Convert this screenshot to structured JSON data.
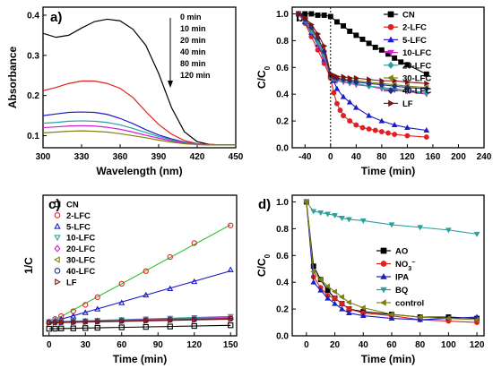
{
  "chart_data": [
    {
      "panel": "a)",
      "type": "line",
      "xlabel": "Wavelength (nm)",
      "ylabel": "Absorbance",
      "xlim": [
        300,
        450
      ],
      "ylim": [
        0.07,
        0.42
      ],
      "xticks": [
        300,
        330,
        360,
        390,
        420,
        450
      ],
      "yticks": [
        0.1,
        0.2,
        0.3,
        0.4
      ],
      "annotations": [
        "0 min",
        "10 min",
        "20 min",
        "40 min",
        "80 min",
        "120 min"
      ],
      "colors": [
        "#000000",
        "#e02020",
        "#1c1cc8",
        "#2aa0a0",
        "#d020d0",
        "#808010"
      ],
      "x": [
        300,
        310,
        320,
        330,
        340,
        350,
        360,
        370,
        380,
        390,
        400,
        410,
        420,
        430,
        440,
        450
      ],
      "series": [
        {
          "values": [
            0.355,
            0.345,
            0.35,
            0.368,
            0.384,
            0.39,
            0.386,
            0.365,
            0.325,
            0.255,
            0.17,
            0.11,
            0.085,
            0.078,
            0.077,
            0.077
          ]
        },
        {
          "values": [
            0.212,
            0.22,
            0.23,
            0.236,
            0.236,
            0.23,
            0.218,
            0.195,
            0.16,
            0.128,
            0.104,
            0.088,
            0.08,
            0.078,
            0.077,
            0.077
          ]
        },
        {
          "values": [
            0.15,
            0.154,
            0.158,
            0.159,
            0.158,
            0.153,
            0.143,
            0.13,
            0.115,
            0.102,
            0.092,
            0.084,
            0.079,
            0.077,
            0.077,
            0.077
          ]
        },
        {
          "values": [
            0.131,
            0.133,
            0.136,
            0.137,
            0.136,
            0.133,
            0.127,
            0.118,
            0.108,
            0.098,
            0.09,
            0.083,
            0.079,
            0.077,
            0.077,
            0.077
          ]
        },
        {
          "values": [
            0.12,
            0.122,
            0.124,
            0.125,
            0.124,
            0.121,
            0.116,
            0.109,
            0.101,
            0.094,
            0.087,
            0.082,
            0.078,
            0.077,
            0.077,
            0.077
          ]
        },
        {
          "values": [
            0.107,
            0.109,
            0.111,
            0.112,
            0.111,
            0.109,
            0.105,
            0.1,
            0.095,
            0.089,
            0.084,
            0.08,
            0.078,
            0.077,
            0.077,
            0.077
          ]
        }
      ]
    },
    {
      "panel": "b)",
      "type": "line",
      "xlabel": "Time (min)",
      "ylabel": "C/C0",
      "xlim": [
        -60,
        240
      ],
      "ylim": [
        0,
        1.05
      ],
      "xticks": [
        -40,
        0,
        40,
        80,
        120,
        160,
        200,
        240
      ],
      "yticks": [
        0.0,
        0.2,
        0.4,
        0.6,
        0.8,
        1.0
      ],
      "colors": [
        "#000000",
        "#e02020",
        "#1c1cc8",
        "#d020d0",
        "#2aa0a0",
        "#808010",
        "#203080",
        "#801010"
      ],
      "markers": [
        "square",
        "circle",
        "triangle-up",
        "triangle-down",
        "diamond",
        "triangle-left",
        "diamond",
        "triangle-right"
      ],
      "series": [
        {
          "name": "CN",
          "x": [
            -50,
            -40,
            -30,
            -20,
            -10,
            0,
            10,
            20,
            30,
            40,
            50,
            60,
            70,
            80,
            90,
            100,
            110,
            120,
            150
          ],
          "values": [
            1.0,
            1.0,
            1.0,
            0.99,
            0.99,
            0.98,
            0.94,
            0.91,
            0.87,
            0.84,
            0.81,
            0.78,
            0.75,
            0.73,
            0.7,
            0.67,
            0.64,
            0.62,
            0.55
          ]
        },
        {
          "name": "2-LFC",
          "x": [
            -50,
            -40,
            -30,
            -20,
            -10,
            0,
            5,
            10,
            15,
            20,
            30,
            40,
            50,
            60,
            70,
            80,
            90,
            100,
            120,
            150
          ],
          "values": [
            1.0,
            0.93,
            0.83,
            0.73,
            0.63,
            0.52,
            0.41,
            0.33,
            0.28,
            0.24,
            0.2,
            0.17,
            0.15,
            0.14,
            0.13,
            0.12,
            0.11,
            0.1,
            0.09,
            0.08
          ]
        },
        {
          "name": "5-LFC",
          "x": [
            -50,
            -40,
            -30,
            -20,
            -10,
            0,
            5,
            10,
            20,
            30,
            40,
            60,
            80,
            100,
            120,
            150
          ],
          "values": [
            1.0,
            0.94,
            0.86,
            0.77,
            0.66,
            0.54,
            0.5,
            0.44,
            0.38,
            0.34,
            0.3,
            0.24,
            0.2,
            0.17,
            0.15,
            0.13
          ]
        },
        {
          "name": "10-LFC",
          "x": [
            -50,
            -40,
            -30,
            -20,
            -10,
            0,
            5,
            10,
            20,
            30,
            40,
            60,
            80,
            100,
            120,
            150
          ],
          "values": [
            1.0,
            0.95,
            0.87,
            0.78,
            0.67,
            0.53,
            0.51,
            0.5,
            0.49,
            0.48,
            0.47,
            0.46,
            0.44,
            0.43,
            0.42,
            0.4
          ]
        },
        {
          "name": "20-LFC",
          "x": [
            -50,
            -40,
            -30,
            -20,
            -10,
            0,
            5,
            10,
            20,
            30,
            40,
            60,
            80,
            100,
            120,
            150
          ],
          "values": [
            1.0,
            0.95,
            0.87,
            0.79,
            0.69,
            0.53,
            0.52,
            0.51,
            0.5,
            0.49,
            0.48,
            0.46,
            0.45,
            0.44,
            0.43,
            0.41
          ]
        },
        {
          "name": "30-LFC",
          "x": [
            -50,
            -40,
            -30,
            -20,
            -10,
            0,
            5,
            10,
            20,
            30,
            40,
            60,
            80,
            100,
            120,
            150
          ],
          "values": [
            1.0,
            0.96,
            0.89,
            0.81,
            0.71,
            0.53,
            0.52,
            0.52,
            0.51,
            0.51,
            0.5,
            0.49,
            0.48,
            0.47,
            0.46,
            0.45
          ]
        },
        {
          "name": "40-LFC",
          "x": [
            -50,
            -40,
            -30,
            -20,
            -10,
            0,
            5,
            10,
            20,
            30,
            40,
            60,
            80,
            100,
            120,
            150
          ],
          "values": [
            1.0,
            0.96,
            0.9,
            0.82,
            0.72,
            0.54,
            0.53,
            0.52,
            0.51,
            0.5,
            0.49,
            0.48,
            0.47,
            0.46,
            0.45,
            0.44
          ]
        },
        {
          "name": "LF",
          "x": [
            -50,
            -40,
            -30,
            -20,
            -10,
            0,
            5,
            10,
            20,
            30,
            40,
            60,
            80,
            100,
            120,
            150
          ],
          "values": [
            1.0,
            0.97,
            0.92,
            0.85,
            0.76,
            0.55,
            0.54,
            0.53,
            0.53,
            0.52,
            0.52,
            0.51,
            0.5,
            0.5,
            0.49,
            0.48
          ]
        }
      ]
    },
    {
      "panel": "c)",
      "type": "scatter",
      "xlabel": "Time (min)",
      "ylabel": "1/C",
      "xlim": [
        -5,
        155
      ],
      "ylim": [
        0,
        1
      ],
      "xticks": [
        0,
        30,
        60,
        90,
        120,
        150
      ],
      "yticks": [],
      "fit_lines": true,
      "colors": [
        "#000000",
        "#e02020",
        "#1c1cc8",
        "#2aa0a0",
        "#d020d0",
        "#808010",
        "#203080",
        "#801010"
      ],
      "fit_colors": [
        "#000000",
        "#30c030",
        "#1c1cc8",
        "#2aa0a0",
        "#d020d0",
        "#808010",
        "#203080",
        "#801010"
      ],
      "markers": [
        "square",
        "circle",
        "triangle-up",
        "triangle-down",
        "diamond",
        "triangle-left",
        "circle",
        "triangle-right"
      ],
      "x": [
        0,
        5,
        10,
        20,
        30,
        40,
        60,
        80,
        100,
        120,
        150
      ],
      "series": [
        {
          "name": "CN",
          "values": [
            0.05,
            0.051,
            0.052,
            0.053,
            0.055,
            0.057,
            0.06,
            0.063,
            0.066,
            0.07,
            0.075
          ]
        },
        {
          "name": "2-LFC",
          "values": [
            0.1,
            0.12,
            0.14,
            0.175,
            0.22,
            0.275,
            0.37,
            0.46,
            0.56,
            0.66,
            0.785
          ]
        },
        {
          "name": "5-LFC",
          "values": [
            0.1,
            0.11,
            0.118,
            0.14,
            0.165,
            0.19,
            0.235,
            0.29,
            0.335,
            0.385,
            0.47
          ]
        },
        {
          "name": "10-LFC",
          "values": [
            0.1,
            0.101,
            0.103,
            0.105,
            0.107,
            0.11,
            0.115,
            0.12,
            0.125,
            0.13,
            0.138
          ]
        },
        {
          "name": "20-LFC",
          "values": [
            0.098,
            0.099,
            0.1,
            0.102,
            0.104,
            0.107,
            0.111,
            0.115,
            0.12,
            0.124,
            0.13
          ]
        },
        {
          "name": "30-LFC",
          "values": [
            0.096,
            0.097,
            0.098,
            0.1,
            0.102,
            0.104,
            0.108,
            0.112,
            0.116,
            0.12,
            0.126
          ]
        },
        {
          "name": "40-LFC",
          "values": [
            0.094,
            0.095,
            0.096,
            0.098,
            0.1,
            0.102,
            0.106,
            0.109,
            0.113,
            0.116,
            0.121
          ]
        },
        {
          "name": "LF",
          "values": [
            0.092,
            0.093,
            0.094,
            0.096,
            0.098,
            0.1,
            0.103,
            0.106,
            0.11,
            0.113,
            0.118
          ]
        }
      ]
    },
    {
      "panel": "d)",
      "type": "line",
      "xlabel": "Time (min)",
      "ylabel": "C/C0",
      "xlim": [
        -10,
        125
      ],
      "ylim": [
        0,
        1.05
      ],
      "xticks": [
        0,
        20,
        40,
        60,
        80,
        100,
        120
      ],
      "yticks": [
        0.0,
        0.2,
        0.4,
        0.6,
        0.8,
        1.0
      ],
      "colors": [
        "#000000",
        "#e02020",
        "#1c1cc8",
        "#2aa0a0",
        "#808010"
      ],
      "markers": [
        "square",
        "circle",
        "triangle-up",
        "triangle-down",
        "triangle-left"
      ],
      "x": [
        0,
        5,
        10,
        15,
        20,
        25,
        30,
        40,
        60,
        80,
        100,
        120
      ],
      "series": [
        {
          "name": "AO",
          "values": [
            1.0,
            0.52,
            0.42,
            0.34,
            0.28,
            0.24,
            0.2,
            0.18,
            0.16,
            0.14,
            0.14,
            0.13
          ]
        },
        {
          "name": "NO3⁻",
          "values": [
            1.0,
            0.44,
            0.36,
            0.3,
            0.28,
            0.24,
            0.2,
            0.17,
            0.15,
            0.12,
            0.11,
            0.1
          ]
        },
        {
          "name": "IPA",
          "values": [
            1.0,
            0.4,
            0.34,
            0.28,
            0.24,
            0.2,
            0.17,
            0.15,
            0.13,
            0.12,
            0.13,
            0.14
          ]
        },
        {
          "name": "BQ",
          "values": [
            1.0,
            0.93,
            0.92,
            0.91,
            0.9,
            0.88,
            0.87,
            0.86,
            0.83,
            0.81,
            0.79,
            0.76
          ]
        },
        {
          "name": "control",
          "values": [
            1.0,
            0.48,
            0.42,
            0.37,
            0.33,
            0.29,
            0.25,
            0.21,
            0.16,
            0.14,
            0.13,
            0.12
          ]
        }
      ]
    }
  ]
}
